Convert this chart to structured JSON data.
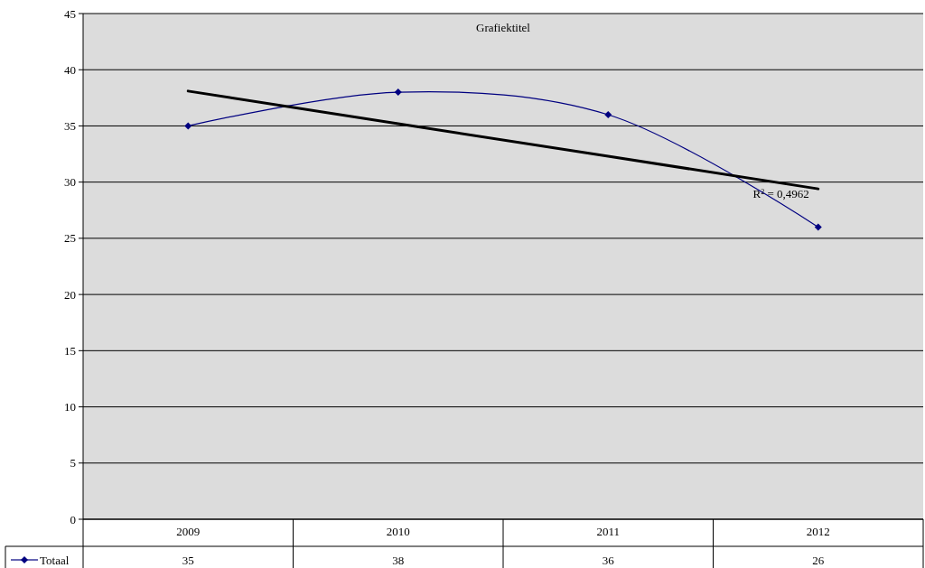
{
  "chart_data": {
    "type": "line",
    "title": "Grafiektitel",
    "categories": [
      "2009",
      "2010",
      "2011",
      "2012"
    ],
    "series": [
      {
        "name": "Totaal",
        "color": "#000080",
        "values": [
          35,
          38,
          36,
          26
        ],
        "value_labels": [
          "35",
          "38",
          "36",
          "26"
        ],
        "marker": "diamond"
      },
      {
        "type": "line",
        "color": "#000000",
        "values": [
          38.1,
          35.2,
          32.3,
          29.4
        ],
        "marker": "none"
      }
    ],
    "ylim": [
      0,
      45
    ],
    "yticks": [
      0,
      5,
      10,
      15,
      20,
      25,
      30,
      35,
      40,
      45
    ],
    "grid": "y",
    "legend": "bottom",
    "annotations": [
      {
        "text": "R$^{2}$ = 0,4962",
        "x": "2012",
        "y": 29.4
      }
    ]
  }
}
